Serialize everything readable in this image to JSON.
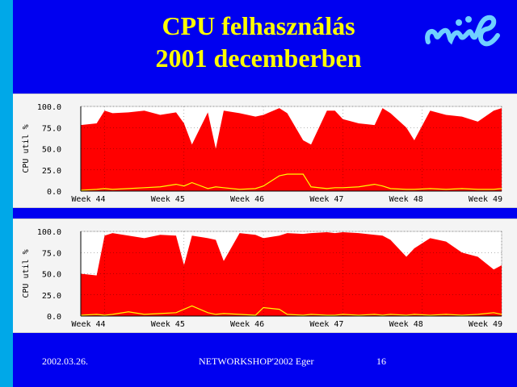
{
  "slide": {
    "title_line1": "CPU felhasználás",
    "title_line2": "2001 decemberben",
    "footer_date": "2002.03.26.",
    "footer_event": "NETWORKSHOP'2002 Eger",
    "footer_page": "16"
  },
  "colors": {
    "background": "#0000f0",
    "stripe": "#00a8e8",
    "title": "#ffff00",
    "area": "#ff0000",
    "line": "#ffff00",
    "plot_bg": "#f4f4f4"
  },
  "chart_data": [
    {
      "type": "area",
      "ylabel": "CPU util %",
      "ylim": [
        0,
        100
      ],
      "yticks": [
        "100.0",
        "75.0",
        "50.0",
        "25.0",
        "0.0"
      ],
      "xticks": [
        "Week 44",
        "Week 45",
        "Week 46",
        "Week 47",
        "Week 48",
        "Week 49"
      ],
      "x": [
        43.7,
        43.9,
        44.0,
        44.1,
        44.3,
        44.5,
        44.7,
        44.9,
        45.0,
        45.1,
        45.3,
        45.4,
        45.5,
        45.7,
        45.9,
        46.0,
        46.2,
        46.3,
        46.5,
        46.6,
        46.8,
        46.9,
        47.0,
        47.2,
        47.4,
        47.5,
        47.6,
        47.8,
        47.9,
        48.1,
        48.3,
        48.5,
        48.7,
        48.9,
        49.0
      ],
      "series": [
        {
          "values": [
            78,
            80,
            95,
            92,
            93,
            95,
            90,
            93,
            80,
            55,
            93,
            50,
            95,
            92,
            88,
            90,
            98,
            92,
            60,
            55,
            95,
            95,
            85,
            80,
            78,
            98,
            92,
            75,
            60,
            95,
            90,
            88,
            82,
            95,
            98
          ]
        },
        {
          "values": [
            1,
            2,
            3,
            2,
            3,
            4,
            5,
            8,
            6,
            10,
            3,
            5,
            4,
            2,
            3,
            6,
            18,
            20,
            20,
            5,
            3,
            4,
            4,
            5,
            8,
            6,
            3,
            2,
            2,
            3,
            2,
            3,
            2,
            2,
            3
          ]
        }
      ]
    },
    {
      "type": "area",
      "ylabel": "CPU util %",
      "ylim": [
        0,
        100
      ],
      "yticks": [
        "100.0",
        "75.0",
        "50.0",
        "25.0",
        "0.0"
      ],
      "xticks": [
        "Week 44",
        "Week 45",
        "Week 46",
        "Week 47",
        "Week 48",
        "Week 49"
      ],
      "x": [
        43.7,
        43.9,
        44.0,
        44.1,
        44.3,
        44.5,
        44.7,
        44.9,
        45.0,
        45.1,
        45.3,
        45.4,
        45.5,
        45.7,
        45.9,
        46.0,
        46.2,
        46.3,
        46.5,
        46.6,
        46.8,
        46.9,
        47.0,
        47.2,
        47.4,
        47.5,
        47.6,
        47.8,
        47.9,
        48.1,
        48.3,
        48.5,
        48.7,
        48.9,
        49.0
      ],
      "series": [
        {
          "values": [
            50,
            48,
            95,
            98,
            95,
            92,
            96,
            95,
            60,
            95,
            92,
            90,
            65,
            98,
            96,
            92,
            95,
            98,
            97,
            98,
            99,
            98,
            99,
            98,
            96,
            95,
            90,
            70,
            80,
            92,
            88,
            75,
            70,
            55,
            60
          ]
        },
        {
          "values": [
            1,
            2,
            1,
            2,
            5,
            2,
            3,
            4,
            8,
            12,
            4,
            2,
            3,
            2,
            1,
            10,
            8,
            2,
            1,
            2,
            1,
            1,
            2,
            1,
            2,
            1,
            2,
            1,
            2,
            1,
            2,
            1,
            2,
            4,
            2
          ]
        }
      ]
    }
  ]
}
